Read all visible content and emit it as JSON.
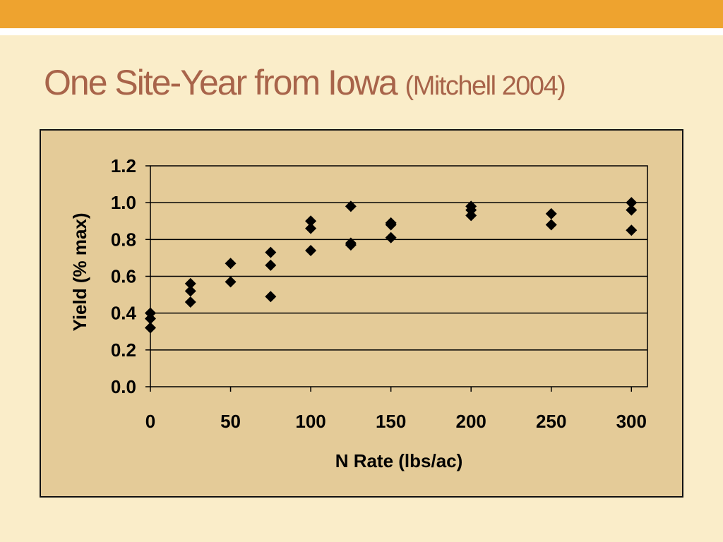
{
  "slide": {
    "title_main": "One Site-Year from Iowa",
    "title_sub": "(Mitchell 2004)"
  },
  "colors": {
    "header_bar": "#eea32f",
    "background": "#faedc9",
    "plot_area": "#e4cb98",
    "title_text": "#a8644a",
    "markers": "#000000"
  },
  "chart_data": {
    "type": "scatter",
    "title": "",
    "xlabel": "N Rate (lbs/ac)",
    "ylabel": "Yield (% max)",
    "xlim": [
      0,
      310
    ],
    "ylim": [
      0,
      1.2
    ],
    "x_ticks": [
      0,
      50,
      100,
      150,
      200,
      250,
      300
    ],
    "y_ticks": [
      0,
      0.2,
      0.4,
      0.6,
      0.8,
      1.0,
      1.2
    ],
    "x_tick_labels": [
      "0",
      "50",
      "100",
      "150",
      "200",
      "250",
      "300"
    ],
    "y_tick_labels": [
      "0.0",
      "0.2",
      "0.4",
      "0.6",
      "0.8",
      "1.0",
      "1.2"
    ],
    "grid": "horizontal",
    "legend": "none",
    "marker": "diamond",
    "points": [
      {
        "x": 0,
        "y": 0.4
      },
      {
        "x": 0,
        "y": 0.37
      },
      {
        "x": 0,
        "y": 0.32
      },
      {
        "x": 25,
        "y": 0.56
      },
      {
        "x": 25,
        "y": 0.52
      },
      {
        "x": 25,
        "y": 0.46
      },
      {
        "x": 50,
        "y": 0.67
      },
      {
        "x": 50,
        "y": 0.57
      },
      {
        "x": 75,
        "y": 0.73
      },
      {
        "x": 75,
        "y": 0.66
      },
      {
        "x": 75,
        "y": 0.49
      },
      {
        "x": 100,
        "y": 0.9
      },
      {
        "x": 100,
        "y": 0.86
      },
      {
        "x": 100,
        "y": 0.74
      },
      {
        "x": 125,
        "y": 0.98
      },
      {
        "x": 125,
        "y": 0.78
      },
      {
        "x": 125,
        "y": 0.77
      },
      {
        "x": 150,
        "y": 0.89
      },
      {
        "x": 150,
        "y": 0.88
      },
      {
        "x": 150,
        "y": 0.81
      },
      {
        "x": 200,
        "y": 0.98
      },
      {
        "x": 200,
        "y": 0.96
      },
      {
        "x": 200,
        "y": 0.93
      },
      {
        "x": 250,
        "y": 0.94
      },
      {
        "x": 250,
        "y": 0.88
      },
      {
        "x": 300,
        "y": 1.0
      },
      {
        "x": 300,
        "y": 0.96
      },
      {
        "x": 300,
        "y": 0.85
      }
    ]
  }
}
